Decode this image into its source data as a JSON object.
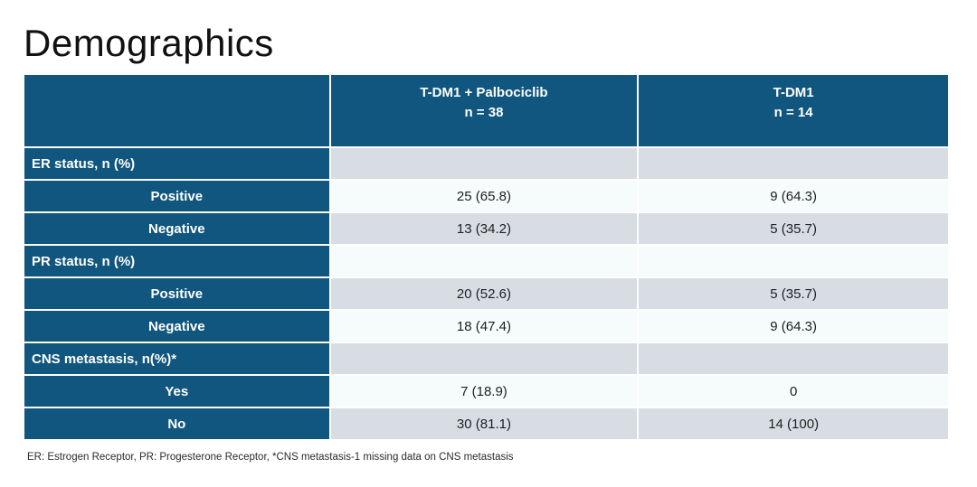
{
  "title": "Demographics",
  "colors": {
    "header_bg": "#11567e",
    "row_gray": "#d8dde4",
    "row_light": "#f6fbfb",
    "header_text": "#ffffff",
    "body_text": "#1f1f1f"
  },
  "table": {
    "header": {
      "arm1_line1": "T-DM1 + Palbociclib",
      "arm1_line2": "n = 38",
      "arm2_line1": "T-DM1",
      "arm2_line2": "n = 14"
    },
    "rows": [
      {
        "label": "ER status, n (%)",
        "arm1": "",
        "arm2": ""
      },
      {
        "label": "Positive",
        "arm1": "25 (65.8)",
        "arm2": "9 (64.3)"
      },
      {
        "label": "Negative",
        "arm1": "13 (34.2)",
        "arm2": "5 (35.7)"
      },
      {
        "label": "PR status, n (%)",
        "arm1": "",
        "arm2": ""
      },
      {
        "label": "Positive",
        "arm1": "20 (52.6)",
        "arm2": "5 (35.7)"
      },
      {
        "label": "Negative",
        "arm1": "18 (47.4)",
        "arm2": "9 (64.3)"
      },
      {
        "label": "CNS metastasis, n(%)*",
        "arm1": "",
        "arm2": ""
      },
      {
        "label": "Yes",
        "arm1": "7 (18.9)",
        "arm2": "0"
      },
      {
        "label": "No",
        "arm1": "30 (81.1)",
        "arm2": "14 (100)"
      }
    ]
  },
  "footnote": "ER: Estrogen Receptor, PR: Progesterone Receptor, *CNS metastasis-1 missing data on CNS metastasis"
}
